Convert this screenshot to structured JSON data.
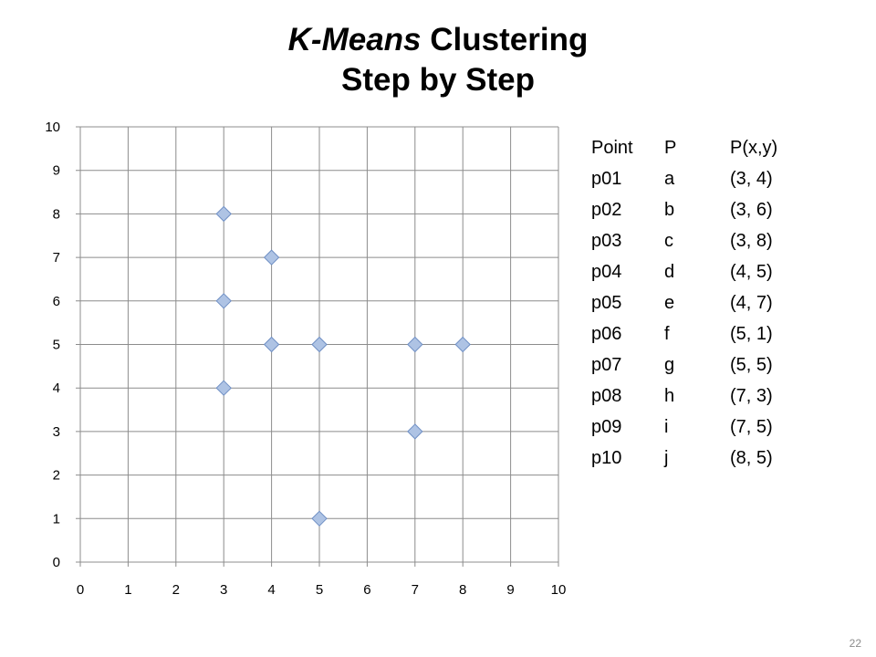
{
  "slide": {
    "title_italic": "K-Means",
    "title_rest": " Clustering",
    "title_line2": "Step by Step",
    "page_number": "22"
  },
  "colors": {
    "marker_fill": "#aec3e4",
    "marker_stroke": "#6f8fc4",
    "grid": "#8c8c8c"
  },
  "chart_data": {
    "type": "scatter",
    "marker": "diamond",
    "xlim": [
      0,
      10
    ],
    "ylim": [
      0,
      10
    ],
    "x_ticks": [
      "0",
      "1",
      "2",
      "3",
      "4",
      "5",
      "6",
      "7",
      "8",
      "9",
      "10"
    ],
    "y_ticks": [
      "0",
      "1",
      "2",
      "3",
      "4",
      "5",
      "6",
      "7",
      "8",
      "9",
      "10"
    ],
    "grid": true,
    "points": [
      {
        "x": 3,
        "y": 4
      },
      {
        "x": 3,
        "y": 6
      },
      {
        "x": 3,
        "y": 8
      },
      {
        "x": 4,
        "y": 5
      },
      {
        "x": 4,
        "y": 7
      },
      {
        "x": 5,
        "y": 1
      },
      {
        "x": 5,
        "y": 5
      },
      {
        "x": 7,
        "y": 3
      },
      {
        "x": 7,
        "y": 5
      },
      {
        "x": 8,
        "y": 5
      }
    ]
  },
  "table": {
    "headers": [
      "Point",
      "P",
      "P(x,y)"
    ],
    "rows": [
      [
        "p01",
        "a",
        "(3, 4)"
      ],
      [
        "p02",
        "b",
        "(3, 6)"
      ],
      [
        "p03",
        "c",
        "(3, 8)"
      ],
      [
        "p04",
        "d",
        "(4, 5)"
      ],
      [
        "p05",
        "e",
        "(4, 7)"
      ],
      [
        "p06",
        "f",
        "(5, 1)"
      ],
      [
        "p07",
        "g",
        "(5, 5)"
      ],
      [
        "p08",
        "h",
        "(7, 3)"
      ],
      [
        "p09",
        "i",
        "(7, 5)"
      ],
      [
        "p10",
        "j",
        "(8, 5)"
      ]
    ]
  }
}
